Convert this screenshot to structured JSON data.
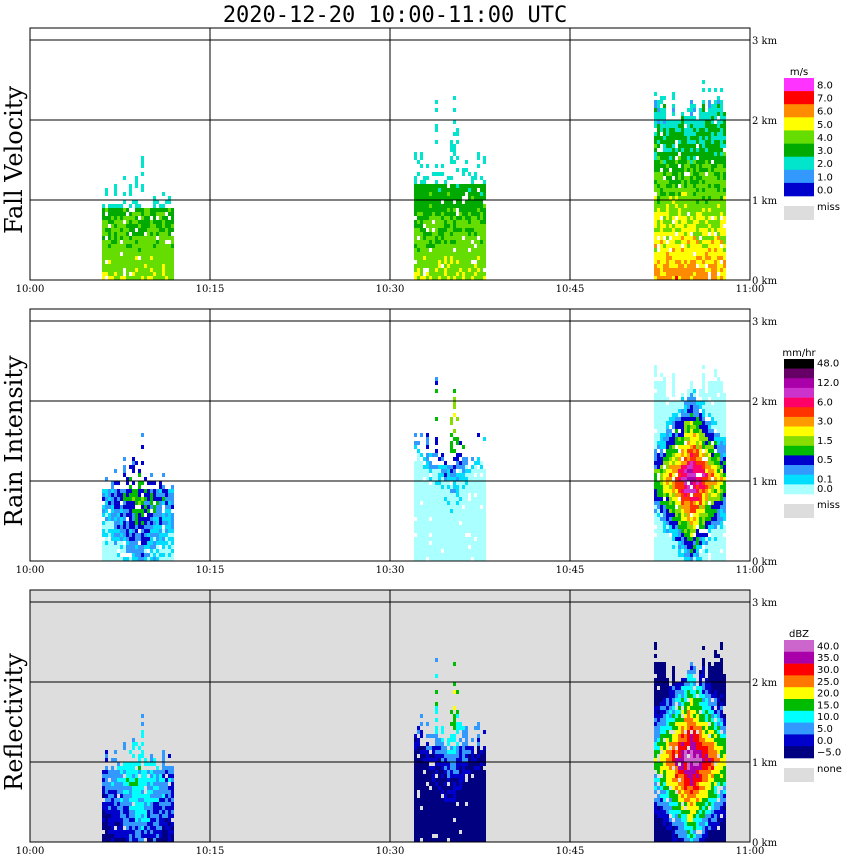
{
  "title": "2020-12-20   10:00-11:00 UTC",
  "time_ticks": [
    "10:00",
    "10:15",
    "10:30",
    "10:45",
    "11:00"
  ],
  "height_ticks": [
    "3 km",
    "2 km",
    "1 km",
    "0 km"
  ],
  "panels": [
    {
      "ylabel": "Fall Velocity",
      "unit": "m/s",
      "background": "#ffffff",
      "legend": [
        {
          "label": "8.0",
          "color": "#ff33ff"
        },
        {
          "label": "7.0",
          "color": "#ff0000"
        },
        {
          "label": "6.0",
          "color": "#ff8c00"
        },
        {
          "label": "5.0",
          "color": "#ffff00"
        },
        {
          "label": "4.0",
          "color": "#66dd00"
        },
        {
          "label": "3.0",
          "color": "#00aa00"
        },
        {
          "label": "2.0",
          "color": "#00e5cc"
        },
        {
          "label": "1.0",
          "color": "#3399ff"
        },
        {
          "label": "0.0",
          "color": "#0000cc"
        }
      ],
      "miss_label": "miss",
      "miss_color": "#dddddd"
    },
    {
      "ylabel": "Rain Intensity",
      "unit": "mm/hr",
      "background": "#ffffff",
      "legend": [
        {
          "label": "48.0",
          "color": "#000000"
        },
        {
          "label": "",
          "color": "#660066"
        },
        {
          "label": "12.0",
          "color": "#aa00aa"
        },
        {
          "label": "",
          "color": "#cc33cc"
        },
        {
          "label": "6.0",
          "color": "#ff0066"
        },
        {
          "label": "",
          "color": "#ff3300"
        },
        {
          "label": "3.0",
          "color": "#ff9900"
        },
        {
          "label": "",
          "color": "#ffff00"
        },
        {
          "label": "1.5",
          "color": "#88dd00"
        },
        {
          "label": "",
          "color": "#00bb00"
        },
        {
          "label": "0.5",
          "color": "#0000cc"
        },
        {
          "label": "",
          "color": "#3399ff"
        },
        {
          "label": "0.1",
          "color": "#00ddff"
        },
        {
          "label": "0.0",
          "color": "#aaffff"
        }
      ],
      "miss_label": "miss",
      "miss_color": "#dddddd"
    },
    {
      "ylabel": "Reflectivity",
      "unit": "dBZ",
      "background": "#dddddd",
      "legend": [
        {
          "label": "40.0",
          "color": "#cc66cc"
        },
        {
          "label": "35.0",
          "color": "#aa00aa"
        },
        {
          "label": "30.0",
          "color": "#ff0000"
        },
        {
          "label": "25.0",
          "color": "#ff7700"
        },
        {
          "label": "20.0",
          "color": "#ffff00"
        },
        {
          "label": "15.0",
          "color": "#00bb00"
        },
        {
          "label": "10.0",
          "color": "#00ffff"
        },
        {
          "label": "5.0",
          "color": "#3399ff"
        },
        {
          "label": "0.0",
          "color": "#0000cc"
        },
        {
          "label": "−5.0",
          "color": "#000080"
        }
      ],
      "miss_label": "none",
      "miss_color": "#dddddd"
    }
  ],
  "chart_data": {
    "type": "heatmap",
    "x_range": [
      "10:00",
      "11:00"
    ],
    "y_range_km": [
      0,
      3
    ],
    "rain_cells": [
      {
        "start": "10:06",
        "end": "10:12",
        "top_km": 1.6,
        "dense_top_km": 0.9,
        "core_km": 0.75,
        "core": 0.35
      },
      {
        "start": "10:32",
        "end": "10:38",
        "top_km": 2.4,
        "dense_top_km": 1.2,
        "core_km": 1.8,
        "core": 0.45
      },
      {
        "start": "10:52",
        "end": "10:58",
        "top_km": 2.4,
        "dense_top_km": 2.2,
        "core_km": 1.0,
        "core": 0.95
      }
    ]
  }
}
